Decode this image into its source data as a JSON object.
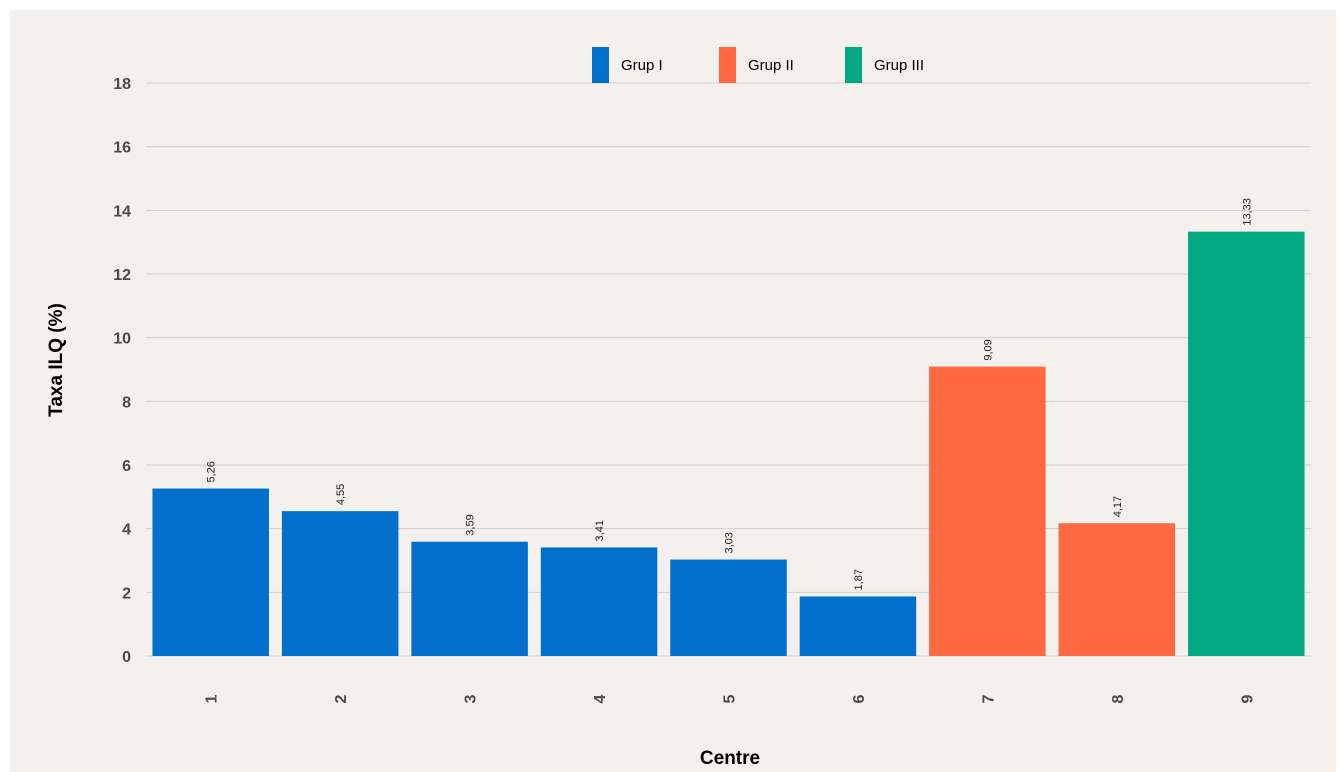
{
  "colors": {
    "background": "#f3f0ed",
    "gridline": "#d3d0cd",
    "axis_text": "#4a4a4a",
    "title_text": "#000000",
    "data_label": "#222222",
    "group_1": "#0070cc",
    "group_2": "#ff6841",
    "group_3": "#00a982"
  },
  "chart_data": {
    "type": "bar",
    "title": "",
    "xlabel": "Centre",
    "ylabel": "Taxa ILQ (%)",
    "ylim": [
      0,
      18
    ],
    "yticks": [
      "0",
      "2",
      "4",
      "6",
      "8",
      "10",
      "12",
      "14",
      "16",
      "18"
    ],
    "grid": true,
    "legend_position": "top-center",
    "legend": [
      {
        "name": "Grup I",
        "color_key": "group_1"
      },
      {
        "name": "Grup II",
        "color_key": "group_2"
      },
      {
        "name": "Grup III",
        "color_key": "group_3"
      }
    ],
    "categories": [
      "1",
      "2",
      "3",
      "4",
      "5",
      "6",
      "7",
      "8",
      "9"
    ],
    "values": [
      5.26,
      4.55,
      3.59,
      3.41,
      3.03,
      1.87,
      9.09,
      4.17,
      13.33
    ],
    "labels": [
      "5,26",
      "4,55",
      "3,59",
      "3,41",
      "3,03",
      "1,87",
      "9,09",
      "4,17",
      "13,33"
    ],
    "groups": [
      "Grup I",
      "Grup I",
      "Grup I",
      "Grup I",
      "Grup I",
      "Grup I",
      "Grup II",
      "Grup II",
      "Grup III"
    ]
  }
}
